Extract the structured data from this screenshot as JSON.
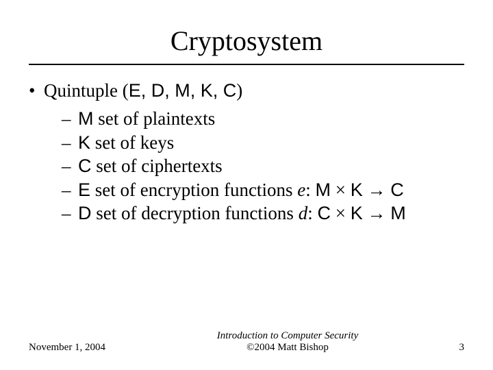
{
  "title": "Cryptosystem",
  "bullet": {
    "dot": "•",
    "prefix": "Quintuple (",
    "tuple": "E, D, M, K, C",
    "suffix": ")"
  },
  "subs": {
    "dash": "–",
    "items": [
      {
        "sym": "M",
        "rest": " set of plaintexts"
      },
      {
        "sym": "K",
        "rest": " set of keys"
      },
      {
        "sym": "C",
        "rest": " set of ciphertexts"
      },
      {
        "sym": "E",
        "rest": " set of encryption functions ",
        "fn": "e",
        "map_from1": "M",
        "times": " × ",
        "map_from2": "K",
        "arrow": " → ",
        "map_to": "C"
      },
      {
        "sym": "D",
        "rest": " set of decryption functions ",
        "fn": "d",
        "map_from1": "C",
        "times": " × ",
        "map_from2": "K",
        "arrow": " → ",
        "map_to": "M"
      }
    ]
  },
  "footer": {
    "date": "November 1, 2004",
    "center1": "Introduction to Computer Security",
    "center2": "©2004 Matt Bishop",
    "page": "3"
  }
}
